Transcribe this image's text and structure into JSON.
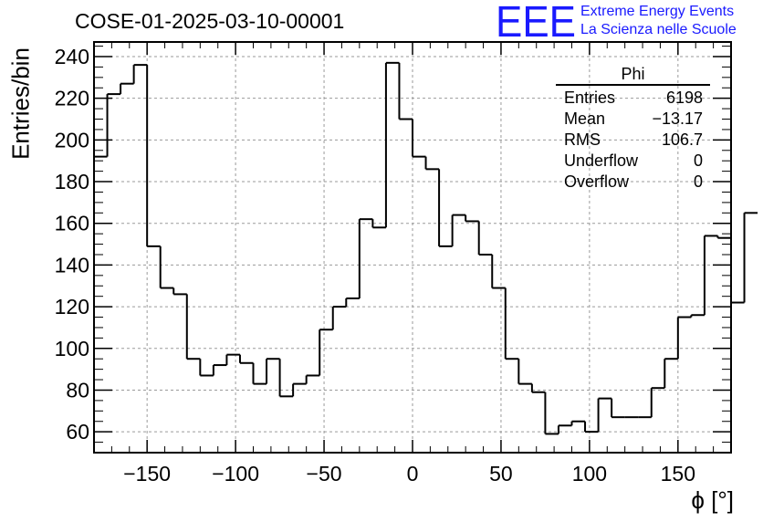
{
  "title": "COSE-01-2025-03-10-00001",
  "logo": {
    "mark": "EEE",
    "line1": "Extreme Energy Events",
    "line2": "La Scienza nelle Scuole",
    "color": "#1a1aff"
  },
  "stats": {
    "name": "Phi",
    "rows": [
      {
        "label": "Entries",
        "value": "6198"
      },
      {
        "label": "Mean",
        "value": "−13.17"
      },
      {
        "label": "RMS",
        "value": "106.7"
      },
      {
        "label": "Underflow",
        "value": "0"
      },
      {
        "label": "Overflow",
        "value": "0"
      }
    ]
  },
  "chart_data": {
    "type": "histogram",
    "title": "COSE-01-2025-03-10-00001",
    "xlabel": "ϕ [°]",
    "ylabel": "Entries/bin",
    "xlim": [
      -180,
      180
    ],
    "ylim": [
      50,
      247
    ],
    "bin_width": 7.5,
    "grid": true,
    "xticks": [
      -150,
      -100,
      -50,
      0,
      50,
      100,
      150
    ],
    "xtick_labels": [
      "−150",
      "−100",
      "−50",
      "0",
      "50",
      "100",
      "150"
    ],
    "yticks": [
      60,
      80,
      100,
      120,
      140,
      160,
      180,
      200,
      220,
      240
    ],
    "values": [
      192,
      222,
      227,
      236,
      149,
      129,
      126,
      95,
      87,
      92,
      97,
      93,
      83,
      95,
      77,
      83,
      87,
      109,
      120,
      124,
      162,
      158,
      237,
      210,
      192,
      186,
      149,
      164,
      161,
      145,
      129,
      95,
      83,
      79,
      59,
      63,
      65,
      60,
      76,
      67,
      67,
      67,
      81,
      95,
      115,
      116,
      154,
      153,
      122,
      165
    ],
    "line_color": "#000000"
  }
}
